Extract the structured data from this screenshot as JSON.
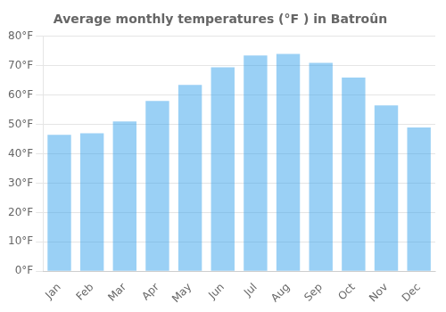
{
  "chart_data": {
    "type": "bar",
    "title": "Average monthly temperatures (°F ) in Batroûn",
    "categories": [
      "Jan",
      "Feb",
      "Mar",
      "Apr",
      "May",
      "Jun",
      "Jul",
      "Aug",
      "Sep",
      "Oct",
      "Nov",
      "Dec"
    ],
    "values": [
      46.5,
      47.0,
      51.0,
      58.0,
      63.5,
      69.5,
      73.5,
      74.0,
      71.0,
      66.0,
      56.5,
      49.0
    ],
    "ylim": [
      0,
      80
    ],
    "yticks": [
      {
        "value": 0,
        "label": "0°F"
      },
      {
        "value": 10,
        "label": "10°F"
      },
      {
        "value": 20,
        "label": "20°F"
      },
      {
        "value": 30,
        "label": "30°F"
      },
      {
        "value": 40,
        "label": "40°F"
      },
      {
        "value": 50,
        "label": "50°F"
      },
      {
        "value": 60,
        "label": "60°F"
      },
      {
        "value": 70,
        "label": "70°F"
      },
      {
        "value": 80,
        "label": "80°F"
      }
    ],
    "grid": true
  }
}
